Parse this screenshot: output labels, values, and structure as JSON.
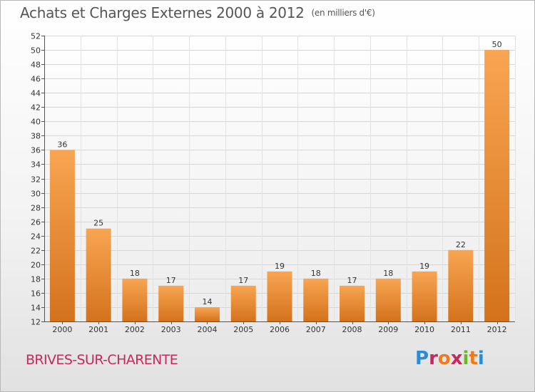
{
  "header": {
    "title": "Achats et Charges Externes 2000 à 2012",
    "unit": "(en milliers d'€)"
  },
  "footer": {
    "commune": "BRIVES-SUR-CHARENTE",
    "logo_text": "Proxiti"
  },
  "colors": {
    "bar_light": "#f8a552",
    "bar_dark": "#d4721c",
    "commune": "#c62a5c"
  },
  "chart_data": {
    "type": "bar",
    "title": "Achats et Charges Externes 2000 à 2012",
    "subtitle": "(en milliers d'€)",
    "xlabel": "",
    "ylabel": "",
    "categories": [
      "2000",
      "2001",
      "2002",
      "2003",
      "2004",
      "2005",
      "2006",
      "2007",
      "2008",
      "2009",
      "2010",
      "2011",
      "2012"
    ],
    "values": [
      36,
      25,
      18,
      17,
      14,
      17,
      19,
      18,
      17,
      18,
      19,
      22,
      50
    ],
    "ylim": [
      12,
      52
    ],
    "yticks": [
      12,
      14,
      16,
      18,
      20,
      22,
      24,
      26,
      28,
      30,
      32,
      34,
      36,
      38,
      40,
      42,
      44,
      46,
      48,
      50,
      52
    ],
    "grid": true,
    "data_labels": true
  }
}
